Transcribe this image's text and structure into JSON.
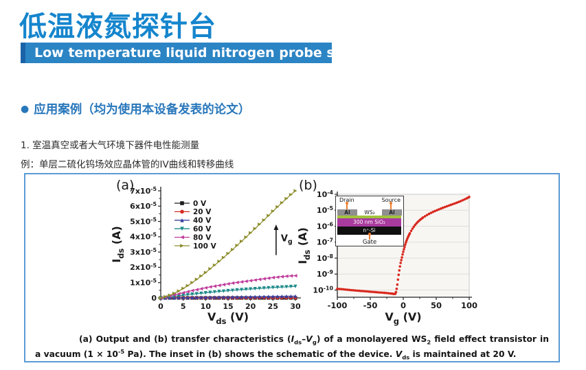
{
  "header": {
    "title": "低温液氮探针台",
    "subtitle": "Low temperature liquid nitrogen probe station"
  },
  "section": {
    "bullet": "●",
    "heading": "应用案例（均为使用本设备发表的论文）",
    "item1": "1. 室温真空或者大气环境下器件电性能测量",
    "example": "例：单层二硫化钨场效应晶体管的IV曲线和转移曲线"
  },
  "colors": {
    "title_blue": "#1585cd",
    "banner_bg": "#2b84c4",
    "banner_bar": "#1a63a8",
    "heading_blue": "#2877bb",
    "figure_border": "#5b9bd5",
    "transfer_red": "#d8281e"
  },
  "figure": {
    "inset": {
      "drain": "Drain",
      "source": "Source",
      "al": "Al",
      "channel": "WS₂",
      "oxide": "300 nm SiO₂",
      "substrate": "n⁺-Si",
      "gate": "Gate"
    },
    "caption": [
      {
        "t": "(a) Output and (b) transfer characteristics ("
      },
      {
        "t": "I",
        "i": true
      },
      {
        "t": "ds",
        "sub": true
      },
      {
        "t": "–"
      },
      {
        "t": "V",
        "i": true
      },
      {
        "t": "g",
        "sub": true
      },
      {
        "t": ") of a monolayered WS"
      },
      {
        "t": "2",
        "sub": true
      },
      {
        "t": " field effect transistor in a vacuum (1 × 10"
      },
      {
        "t": "-5",
        "sup": true
      },
      {
        "t": " Pa). The inset in (b) shows the schematic of the device. "
      },
      {
        "t": "V",
        "i": true
      },
      {
        "t": "ds",
        "sub": true
      },
      {
        "t": " is maintained at 20 V."
      }
    ]
  },
  "chart_data": [
    {
      "type": "line",
      "panel": "(a)",
      "xlabel": [
        {
          "t": "V"
        },
        {
          "t": "ds",
          "sub": true
        },
        {
          "t": " (V)"
        }
      ],
      "ylabel": [
        {
          "t": "I"
        },
        {
          "t": "ds",
          "sub": true
        },
        {
          "t": " (A)"
        }
      ],
      "xlim": [
        0,
        30
      ],
      "ylim": [
        0,
        7
      ],
      "y_unit": "×10⁻⁵ A",
      "xticks": [
        0,
        5,
        10,
        15,
        20,
        25,
        30
      ],
      "ytick_values": [
        0,
        1,
        2,
        3,
        4,
        5,
        6,
        7
      ],
      "ytick_labels": [
        [
          {
            "t": "0"
          }
        ],
        [
          {
            "t": "1x10"
          },
          {
            "t": "-5",
            "sup": true
          }
        ],
        [
          {
            "t": "2x10"
          },
          {
            "t": "-5",
            "sup": true
          }
        ],
        [
          {
            "t": "3x10"
          },
          {
            "t": "-5",
            "sup": true
          }
        ],
        [
          {
            "t": "4x10"
          },
          {
            "t": "-5",
            "sup": true
          }
        ],
        [
          {
            "t": "5x10"
          },
          {
            "t": "-5",
            "sup": true
          }
        ],
        [
          {
            "t": "6x10"
          },
          {
            "t": "-5",
            "sup": true
          }
        ],
        [
          {
            "t": "7x10"
          },
          {
            "t": "-5",
            "sup": true
          }
        ]
      ],
      "legend_position": "upper-left",
      "x": [
        0,
        1,
        2,
        3,
        4,
        5,
        6,
        7,
        8,
        9,
        10,
        11,
        12,
        13,
        14,
        15,
        16,
        17,
        18,
        19,
        20,
        21,
        22,
        23,
        24,
        25,
        26,
        27,
        28,
        29,
        30
      ],
      "series": [
        {
          "name": "0 V",
          "color": "#1c1c1c",
          "marker": "square",
          "values": [
            0,
            0,
            0,
            0,
            0,
            0,
            0,
            0,
            0,
            0,
            0,
            0,
            0,
            0,
            0,
            0,
            0,
            0,
            0,
            0,
            0,
            0,
            0,
            0,
            0,
            0,
            0,
            0,
            0,
            0,
            0
          ]
        },
        {
          "name": "20 V",
          "color": "#d42a20",
          "marker": "circle",
          "values": [
            0,
            0.001,
            0.001,
            0.002,
            0.003,
            0.003,
            0.004,
            0.005,
            0.005,
            0.006,
            0.007,
            0.007,
            0.008,
            0.009,
            0.009,
            0.01,
            0.011,
            0.011,
            0.012,
            0.013,
            0.013,
            0.014,
            0.015,
            0.015,
            0.016,
            0.017,
            0.017,
            0.018,
            0.019,
            0.019,
            0.02
          ]
        },
        {
          "name": "40 V",
          "color": "#3a3f9e",
          "marker": "triangle-up",
          "values": [
            0,
            0.004,
            0.008,
            0.012,
            0.016,
            0.02,
            0.024,
            0.028,
            0.032,
            0.036,
            0.04,
            0.044,
            0.048,
            0.052,
            0.056,
            0.06,
            0.064,
            0.068,
            0.072,
            0.076,
            0.08,
            0.084,
            0.088,
            0.092,
            0.096,
            0.1,
            0.104,
            0.108,
            0.112,
            0.116,
            0.12
          ]
        },
        {
          "name": "60 V",
          "color": "#1f8a8a",
          "marker": "triangle-down",
          "values": [
            0,
            0.03,
            0.07,
            0.1,
            0.14,
            0.17,
            0.21,
            0.24,
            0.27,
            0.3,
            0.33,
            0.36,
            0.39,
            0.42,
            0.44,
            0.47,
            0.49,
            0.52,
            0.54,
            0.56,
            0.58,
            0.6,
            0.62,
            0.64,
            0.66,
            0.68,
            0.69,
            0.71,
            0.72,
            0.74,
            0.75
          ]
        },
        {
          "name": "80 V",
          "color": "#bf3b9b",
          "marker": "triangle-left",
          "values": [
            0,
            0.06,
            0.13,
            0.2,
            0.27,
            0.34,
            0.41,
            0.48,
            0.54,
            0.6,
            0.66,
            0.72,
            0.77,
            0.82,
            0.87,
            0.92,
            0.97,
            1.01,
            1.05,
            1.09,
            1.13,
            1.17,
            1.21,
            1.25,
            1.29,
            1.33,
            1.36,
            1.39,
            1.42,
            1.44,
            1.45
          ]
        },
        {
          "name": "100 V",
          "color": "#8c8c2b",
          "marker": "triangle-right",
          "values": [
            0,
            0.08,
            0.18,
            0.3,
            0.45,
            0.62,
            0.8,
            1,
            1.21,
            1.43,
            1.66,
            1.9,
            2.14,
            2.39,
            2.64,
            2.9,
            3.16,
            3.43,
            3.7,
            3.97,
            4.25,
            4.53,
            4.81,
            5.09,
            5.38,
            5.67,
            5.95,
            6.22,
            6.49,
            6.75,
            7
          ]
        }
      ],
      "annotation": {
        "x": 25.7,
        "y_from": 2.8,
        "y_to": 4.8,
        "label": [
          {
            "t": "V"
          },
          {
            "t": "g",
            "sub": true
          }
        ]
      }
    },
    {
      "type": "scatter",
      "panel": "(b)",
      "xlabel": [
        {
          "t": "V"
        },
        {
          "t": "g",
          "sub": true
        },
        {
          "t": " (V)"
        }
      ],
      "ylabel": [
        {
          "t": "I"
        },
        {
          "t": "ds",
          "sub": true
        },
        {
          "t": " (A)"
        }
      ],
      "xlim": [
        -100,
        100
      ],
      "ylim_log": [
        -10.45,
        -4
      ],
      "xticks": [
        -100,
        -50,
        0,
        50,
        100
      ],
      "xticks_minor": [
        -75,
        -25,
        25,
        75
      ],
      "ytick_logs": [
        -4,
        -5,
        -6,
        -7,
        -8,
        -9,
        -10
      ],
      "ytick_labels": [
        [
          {
            "t": "10"
          },
          {
            "t": "-4",
            "sup": true
          }
        ],
        [
          {
            "t": "10"
          },
          {
            "t": "-5",
            "sup": true
          }
        ],
        [
          {
            "t": "10"
          },
          {
            "t": "-6",
            "sup": true
          }
        ],
        [
          {
            "t": "10"
          },
          {
            "t": "-7",
            "sup": true
          }
        ],
        [
          {
            "t": "10"
          },
          {
            "t": "-8",
            "sup": true
          }
        ],
        [
          {
            "t": "10"
          },
          {
            "t": "-9",
            "sup": true
          }
        ],
        [
          {
            "t": "10"
          },
          {
            "t": "-10",
            "sup": true
          }
        ]
      ],
      "color": "#d8281e",
      "grid": true,
      "points": [
        [
          -100,
          1.2e-10
        ],
        [
          -97,
          1.17e-10
        ],
        [
          -94,
          1.14e-10
        ],
        [
          -91,
          1.11e-10
        ],
        [
          -88,
          1.08e-10
        ],
        [
          -85,
          1.05e-10
        ],
        [
          -82,
          1.02e-10
        ],
        [
          -79,
          9.9e-11
        ],
        [
          -76,
          9.7e-11
        ],
        [
          -73,
          9.4e-11
        ],
        [
          -70,
          9.2e-11
        ],
        [
          -67,
          9e-11
        ],
        [
          -64,
          8.8e-11
        ],
        [
          -61,
          8.6e-11
        ],
        [
          -58,
          8.4e-11
        ],
        [
          -55,
          8.2e-11
        ],
        [
          -52,
          8e-11
        ],
        [
          -49,
          7.8e-11
        ],
        [
          -46,
          7.6e-11
        ],
        [
          -43,
          7.5e-11
        ],
        [
          -40,
          7.3e-11
        ],
        [
          -37,
          7.1e-11
        ],
        [
          -34,
          7e-11
        ],
        [
          -31,
          6.8e-11
        ],
        [
          -28,
          6.7e-11
        ],
        [
          -25,
          6.5e-11
        ],
        [
          -22,
          6.3e-11
        ],
        [
          -19,
          6.1e-11
        ],
        [
          -17,
          6e-11
        ],
        [
          -15,
          5.8e-11
        ],
        [
          -13,
          5.7e-11
        ],
        [
          -12,
          6e-11
        ],
        [
          -11,
          7.5e-11
        ],
        [
          -10,
          1.2e-10
        ],
        [
          -9,
          2.2e-10
        ],
        [
          -8,
          4.5e-10
        ],
        [
          -7,
          9e-10
        ],
        [
          -6,
          1.7e-09
        ],
        [
          -5,
          3e-09
        ],
        [
          -4,
          5e-09
        ],
        [
          -3,
          7.5e-09
        ],
        [
          -2,
          1.1e-08
        ],
        [
          -1,
          1.7e-08
        ],
        [
          0,
          2.5e-08
        ],
        [
          1,
          3.6e-08
        ],
        [
          2,
          5e-08
        ],
        [
          3,
          7e-08
        ],
        [
          4,
          9.5e-08
        ],
        [
          5,
          1.25e-07
        ],
        [
          6,
          1.6e-07
        ],
        [
          7,
          2e-07
        ],
        [
          8,
          2.45e-07
        ],
        [
          9,
          3e-07
        ],
        [
          10,
          3.6e-07
        ],
        [
          12,
          5.1e-07
        ],
        [
          14,
          7e-07
        ],
        [
          16,
          9.2e-07
        ],
        [
          18,
          1.2e-06
        ],
        [
          20,
          1.5e-06
        ],
        [
          22,
          1.85e-06
        ],
        [
          24,
          2.2e-06
        ],
        [
          26,
          2.6e-06
        ],
        [
          28,
          3e-06
        ],
        [
          30,
          3.5e-06
        ],
        [
          33,
          4.2e-06
        ],
        [
          36,
          5e-06
        ],
        [
          39,
          5.9e-06
        ],
        [
          42,
          6.8e-06
        ],
        [
          45,
          7.8e-06
        ],
        [
          48,
          8.9e-06
        ],
        [
          51,
          1e-05
        ],
        [
          54,
          1.13e-05
        ],
        [
          57,
          1.27e-05
        ],
        [
          60,
          1.42e-05
        ],
        [
          63,
          1.58e-05
        ],
        [
          66,
          1.76e-05
        ],
        [
          69,
          1.95e-05
        ],
        [
          72,
          2.16e-05
        ],
        [
          75,
          2.4e-05
        ],
        [
          78,
          2.65e-05
        ],
        [
          81,
          2.95e-05
        ],
        [
          84,
          3.3e-05
        ],
        [
          87,
          3.7e-05
        ],
        [
          90,
          4.2e-05
        ],
        [
          93,
          4.8e-05
        ],
        [
          96,
          5.5e-05
        ],
        [
          98,
          6.1e-05
        ],
        [
          100,
          6.8e-05
        ]
      ]
    }
  ]
}
